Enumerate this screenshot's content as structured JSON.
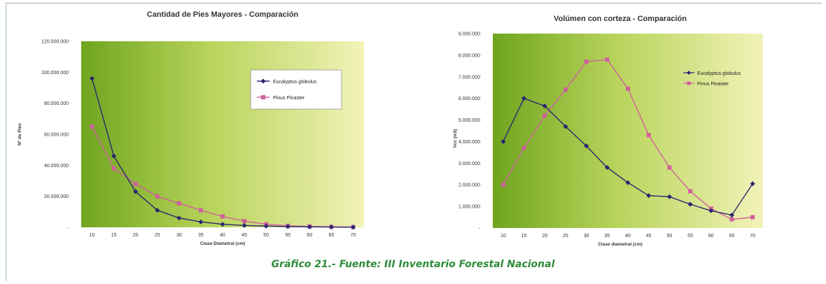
{
  "caption": "Gráfico 21.- Fuente: III Inventario Forestal Nacional",
  "colors": {
    "eucalyptus": "#2a2670",
    "pinus": "#d0609c"
  },
  "chart_data": [
    {
      "type": "line",
      "title": "Cantidad de Pies Mayores - Comparación",
      "xlabel": "Clase Diametral (cm)",
      "ylabel": "Nº de Pies",
      "categories": [
        "10",
        "15",
        "20",
        "25",
        "30",
        "35",
        "40",
        "45",
        "50",
        "55",
        "60",
        "65",
        "70"
      ],
      "ylim": [
        0,
        120000000
      ],
      "yticks": [
        0,
        20000000,
        40000000,
        60000000,
        80000000,
        100000000,
        120000000
      ],
      "ytick_labels": [
        "-",
        "20.000.000",
        "40.000.000",
        "60.000.000",
        "80.000.000",
        "100.000.000",
        "120.000.000"
      ],
      "legend_position": "upper-right",
      "grid": false,
      "series": [
        {
          "name": "Eucalyptus globulus",
          "color": "#2a2670",
          "marker": "diamond",
          "values": [
            96000000,
            46000000,
            23000000,
            11000000,
            6000000,
            3500000,
            2000000,
            1200000,
            800000,
            500000,
            300000,
            200000,
            100000
          ]
        },
        {
          "name": "Pinus Pinaster",
          "color": "#d0609c",
          "marker": "square",
          "values": [
            65000000,
            38000000,
            28000000,
            20000000,
            15500000,
            11000000,
            7000000,
            4000000,
            2000000,
            1000000,
            600000,
            300000,
            200000
          ]
        }
      ]
    },
    {
      "type": "line",
      "title": "Volúmen con corteza - Comparación",
      "xlabel": "Clase diametral (cm)",
      "ylabel": "Vcc (m3)",
      "categories": [
        "10",
        "15",
        "20",
        "25",
        "30",
        "35",
        "40",
        "45",
        "50",
        "55",
        "60",
        "65",
        "70"
      ],
      "ylim": [
        0,
        9000000
      ],
      "yticks": [
        0,
        1000000,
        2000000,
        3000000,
        4000000,
        5000000,
        6000000,
        7000000,
        8000000,
        9000000
      ],
      "ytick_labels": [
        "-",
        "1.000.000",
        "2.000.000",
        "3.000.000",
        "4.000.000",
        "5.000.000",
        "6.000.000",
        "7.000.000",
        "8.000.000",
        "9.000.000"
      ],
      "legend_position": "upper-right",
      "grid": false,
      "series": [
        {
          "name": "Eucalyptus globulus",
          "color": "#2a2670",
          "marker": "diamond",
          "values": [
            4000000,
            6000000,
            5650000,
            4700000,
            3800000,
            2800000,
            2100000,
            1500000,
            1450000,
            1100000,
            800000,
            600000,
            2050000
          ]
        },
        {
          "name": "Pinus Pinaster",
          "color": "#d0609c",
          "marker": "square",
          "values": [
            2000000,
            3700000,
            5200000,
            6400000,
            7700000,
            7800000,
            6450000,
            4300000,
            2800000,
            1700000,
            900000,
            400000,
            500000
          ]
        }
      ]
    }
  ]
}
